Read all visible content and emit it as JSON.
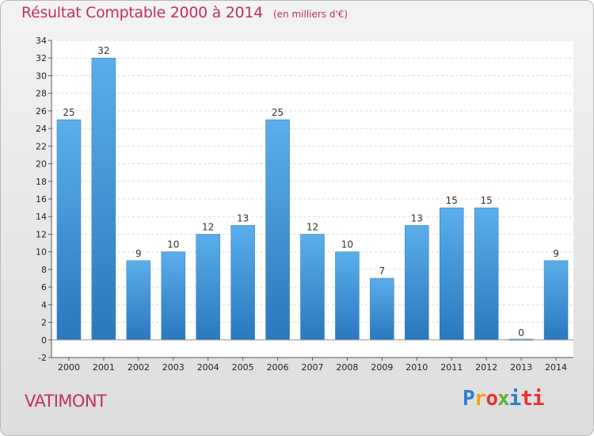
{
  "title": {
    "main": "Résultat Comptable 2000 à 2014",
    "unit": "(en milliers d'€)"
  },
  "commune": "VATIMONT",
  "brand": {
    "letters": [
      "P",
      "r",
      "o",
      "x",
      "i",
      "ti"
    ],
    "colors": [
      "#2b7bd8",
      "#f4a018",
      "#e8322e",
      "#5db23b",
      "#2b7bd8",
      "#e8322e"
    ]
  },
  "chart_data": {
    "type": "bar",
    "categories": [
      "2000",
      "2001",
      "2002",
      "2003",
      "2004",
      "2005",
      "2006",
      "2007",
      "2008",
      "2009",
      "2010",
      "2011",
      "2012",
      "2013",
      "2014"
    ],
    "values": [
      25,
      32,
      9,
      10,
      12,
      13,
      25,
      12,
      10,
      7,
      13,
      15,
      15,
      0,
      9
    ],
    "ylim": [
      -2,
      34
    ],
    "yticks": [
      -2,
      0,
      2,
      4,
      6,
      8,
      10,
      12,
      14,
      16,
      18,
      20,
      22,
      24,
      26,
      28,
      30,
      32,
      34
    ],
    "grid": true,
    "bar_color": "#3c91d6"
  }
}
